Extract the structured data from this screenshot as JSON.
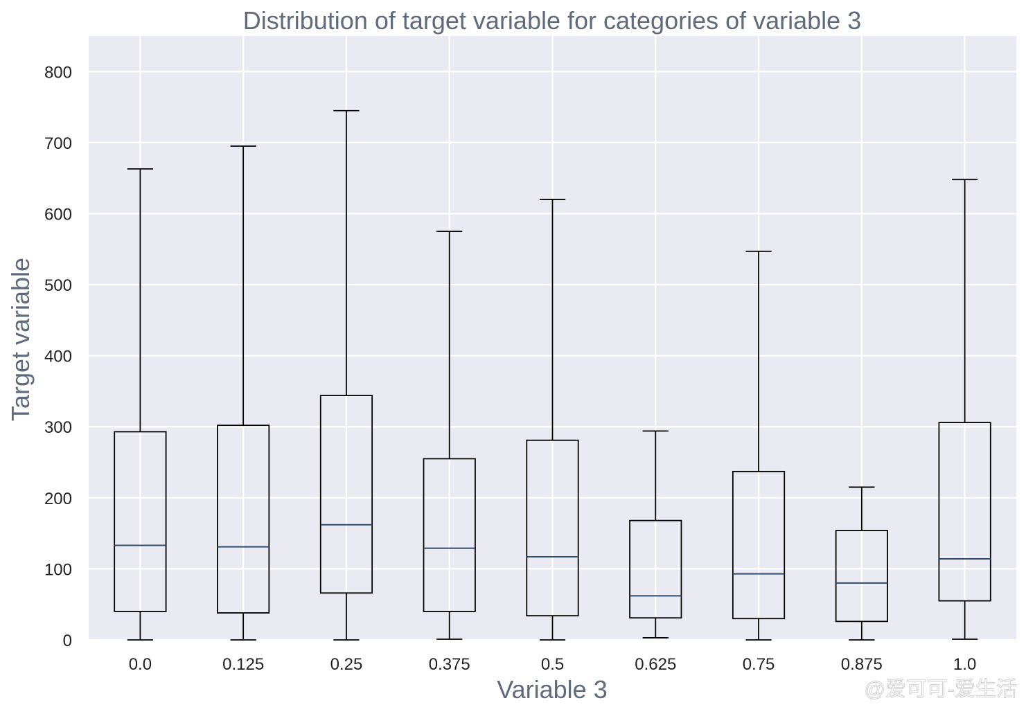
{
  "chart_data": {
    "type": "boxplot",
    "title": "Distribution of target variable for categories of variable 3",
    "xlabel": "Variable 3",
    "ylabel": "Target variable",
    "categories": [
      "0.0",
      "0.125",
      "0.25",
      "0.375",
      "0.5",
      "0.625",
      "0.75",
      "0.875",
      "1.0"
    ],
    "boxes": [
      {
        "whisker_low": 0,
        "q1": 40,
        "median": 133,
        "q3": 293,
        "whisker_high": 663
      },
      {
        "whisker_low": 0,
        "q1": 38,
        "median": 131,
        "q3": 302,
        "whisker_high": 695
      },
      {
        "whisker_low": 0,
        "q1": 66,
        "median": 162,
        "q3": 344,
        "whisker_high": 745
      },
      {
        "whisker_low": 1,
        "q1": 40,
        "median": 129,
        "q3": 255,
        "whisker_high": 575
      },
      {
        "whisker_low": 0,
        "q1": 34,
        "median": 117,
        "q3": 281,
        "whisker_high": 620
      },
      {
        "whisker_low": 3,
        "q1": 31,
        "median": 62,
        "q3": 168,
        "whisker_high": 294
      },
      {
        "whisker_low": 0,
        "q1": 30,
        "median": 93,
        "q3": 237,
        "whisker_high": 547
      },
      {
        "whisker_low": 0,
        "q1": 26,
        "median": 80,
        "q3": 154,
        "whisker_high": 215
      },
      {
        "whisker_low": 1,
        "q1": 55,
        "median": 114,
        "q3": 306,
        "whisker_high": 648
      }
    ],
    "ylim": [
      0,
      850
    ],
    "yticks": [
      0,
      100,
      200,
      300,
      400,
      500,
      600,
      700,
      800
    ],
    "grid": true,
    "colors": {
      "background": "#eaeaf2",
      "grid": "#ffffff",
      "box": "#000000",
      "median": "#2f4b6e",
      "text": "#5f6a7d"
    }
  },
  "watermark": "@爱可可-爱生活"
}
